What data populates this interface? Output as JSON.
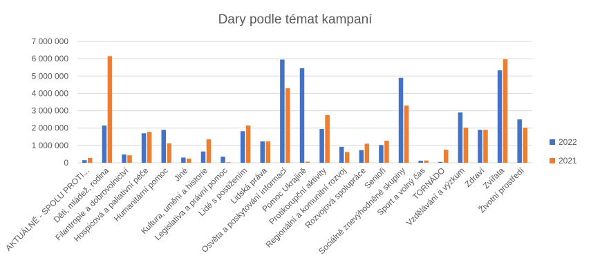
{
  "chart_data": {
    "type": "bar",
    "title": "Dary podle témat kampaní",
    "xlabel": "",
    "ylabel": "",
    "ylim": [
      0,
      7000000
    ],
    "y_ticks": [
      0,
      1000000,
      2000000,
      3000000,
      4000000,
      5000000,
      6000000,
      7000000
    ],
    "y_tick_labels": [
      "0",
      "1 000 000",
      "2 000 000",
      "3 000 000",
      "4 000 000",
      "5 000 000",
      "6 000 000",
      "7 000 000"
    ],
    "grid": true,
    "legend_position": "right",
    "categories": [
      "AKTUÁLNĚ - SPOLU PROTI...",
      "Děti, mládež, rodina",
      "Filantropie a dobrovolnictví",
      "Hospicová a paliativní péče",
      "Humanitární pomoc",
      "Jiné",
      "Kultura, umění a historie",
      "Legislativa a právní pomoc",
      "Lidé s postižením",
      "Lidská práva",
      "Osvěta a poskytování informací",
      "Pomoc Ukrajině",
      "Protikorupční aktivity",
      "Regionální a komunitní rozvoj",
      "Rozvojová spolupráce",
      "Senioři",
      "Sociálně znevýhodněné skupiny",
      "Sport a volný čas",
      "TORNÁDO",
      "Vzdělávání a výzkum",
      "Zdraví",
      "Zvířata",
      "Životní prostředí"
    ],
    "series": [
      {
        "name": "2022",
        "color": "#4472c4",
        "values": [
          150000,
          2150000,
          480000,
          1700000,
          1900000,
          300000,
          650000,
          350000,
          1820000,
          1230000,
          5950000,
          5450000,
          1950000,
          920000,
          730000,
          1020000,
          4900000,
          120000,
          50000,
          2900000,
          1900000,
          5330000,
          2500000
        ]
      },
      {
        "name": "2021",
        "color": "#ed7d31",
        "values": [
          280000,
          6150000,
          430000,
          1780000,
          1120000,
          240000,
          1350000,
          30000,
          2150000,
          1230000,
          4300000,
          60000,
          2750000,
          620000,
          1100000,
          1270000,
          3300000,
          130000,
          750000,
          2020000,
          1900000,
          5970000,
          2020000
        ]
      }
    ]
  }
}
